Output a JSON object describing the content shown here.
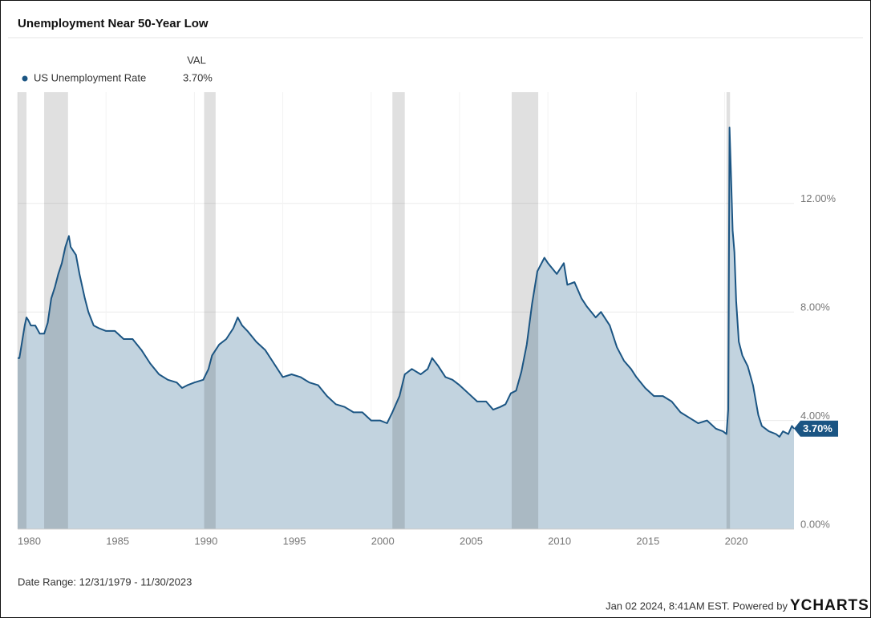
{
  "chart_data": {
    "type": "area",
    "title": "Unemployment Near 50-Year Low",
    "legend_header": "VAL",
    "series": [
      {
        "name": "US Unemployment Rate",
        "color": "#1b5583",
        "fill": "#c2d3df",
        "last_value_label": "3.70%",
        "x": [
          1980.0,
          1980.1,
          1980.25,
          1980.4,
          1980.5,
          1980.6,
          1980.75,
          1981.0,
          1981.25,
          1981.5,
          1981.7,
          1981.9,
          1982.1,
          1982.3,
          1982.5,
          1982.7,
          1982.9,
          1983.0,
          1983.3,
          1983.5,
          1983.8,
          1984.0,
          1984.3,
          1984.6,
          1985.0,
          1985.5,
          1986.0,
          1986.5,
          1987.0,
          1987.5,
          1988.0,
          1988.5,
          1989.0,
          1989.3,
          1989.6,
          1990.0,
          1990.5,
          1990.8,
          1991.0,
          1991.4,
          1991.8,
          1992.2,
          1992.45,
          1992.7,
          1993.0,
          1993.5,
          1994.0,
          1994.5,
          1995.0,
          1995.5,
          1996.0,
          1996.5,
          1997.0,
          1997.5,
          1998.0,
          1998.5,
          1999.0,
          1999.5,
          2000.0,
          2000.5,
          2000.9,
          2001.2,
          2001.6,
          2001.9,
          2002.3,
          2002.8,
          2003.2,
          2003.45,
          2003.8,
          2004.2,
          2004.6,
          2005.0,
          2005.5,
          2006.0,
          2006.5,
          2006.9,
          2007.3,
          2007.6,
          2007.9,
          2008.2,
          2008.5,
          2008.8,
          2009.1,
          2009.4,
          2009.8,
          2010.0,
          2010.5,
          2010.9,
          2011.1,
          2011.5,
          2011.9,
          2012.2,
          2012.7,
          2013.0,
          2013.5,
          2013.9,
          2014.3,
          2014.7,
          2015.0,
          2015.5,
          2016.0,
          2016.5,
          2017.0,
          2017.5,
          2018.0,
          2018.5,
          2019.0,
          2019.5,
          2019.9,
          2020.1,
          2020.2,
          2020.27,
          2020.35,
          2020.45,
          2020.55,
          2020.65,
          2020.8,
          2021.0,
          2021.3,
          2021.6,
          2021.9,
          2022.1,
          2022.5,
          2022.9,
          2023.1,
          2023.3,
          2023.6,
          2023.8,
          2023.92
        ],
        "values": [
          6.3,
          6.3,
          6.9,
          7.5,
          7.8,
          7.7,
          7.5,
          7.5,
          7.2,
          7.2,
          7.6,
          8.5,
          8.9,
          9.4,
          9.8,
          10.4,
          10.8,
          10.4,
          10.1,
          9.4,
          8.5,
          8.0,
          7.5,
          7.4,
          7.3,
          7.3,
          7.0,
          7.0,
          6.6,
          6.1,
          5.7,
          5.5,
          5.4,
          5.2,
          5.3,
          5.4,
          5.5,
          5.9,
          6.4,
          6.8,
          7.0,
          7.4,
          7.8,
          7.5,
          7.3,
          6.9,
          6.6,
          6.1,
          5.6,
          5.7,
          5.6,
          5.4,
          5.3,
          4.9,
          4.6,
          4.5,
          4.3,
          4.3,
          4.0,
          4.0,
          3.9,
          4.3,
          4.9,
          5.7,
          5.9,
          5.7,
          5.9,
          6.3,
          6.0,
          5.6,
          5.5,
          5.3,
          5.0,
          4.7,
          4.7,
          4.4,
          4.5,
          4.6,
          5.0,
          5.1,
          5.8,
          6.8,
          8.3,
          9.5,
          10.0,
          9.8,
          9.4,
          9.8,
          9.0,
          9.1,
          8.5,
          8.2,
          7.8,
          8.0,
          7.5,
          6.7,
          6.2,
          5.9,
          5.6,
          5.2,
          4.9,
          4.9,
          4.7,
          4.3,
          4.1,
          3.9,
          4.0,
          3.7,
          3.6,
          3.5,
          4.4,
          14.8,
          13.2,
          11.0,
          10.2,
          8.4,
          6.9,
          6.4,
          6.0,
          5.3,
          4.2,
          3.8,
          3.6,
          3.5,
          3.4,
          3.6,
          3.5,
          3.8,
          3.7
        ]
      }
    ],
    "recessions": [
      [
        1980.0,
        1980.5
      ],
      [
        1981.5,
        1982.85
      ],
      [
        1990.55,
        1991.2
      ],
      [
        2001.2,
        2001.9
      ],
      [
        2007.95,
        2009.45
      ],
      [
        2020.1,
        2020.3
      ]
    ],
    "xlim": [
      1980.0,
      2023.92
    ],
    "xticks": [
      1980,
      1985,
      1990,
      1995,
      2000,
      2005,
      2010,
      2015,
      2020
    ],
    "ylim": [
      0,
      16.1
    ],
    "yticks": [
      {
        "value": 0,
        "label": "0.00%"
      },
      {
        "value": 4,
        "label": "4.00%"
      },
      {
        "value": 8,
        "label": "8.00%"
      },
      {
        "value": 12,
        "label": "12.00%"
      }
    ],
    "grid": true,
    "date_range": "Date Range: 12/31/1979 - 11/30/2023",
    "footer": "Jan 02 2024, 8:41AM EST. Powered by",
    "brand": "YCHARTS"
  }
}
